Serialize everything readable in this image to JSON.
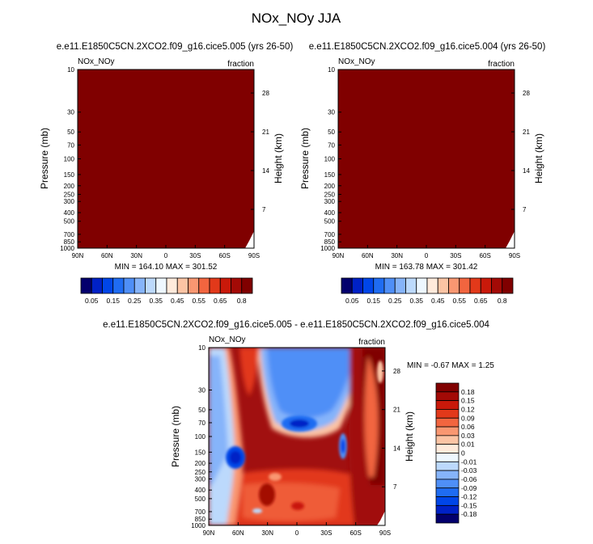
{
  "title": "NOx_NOy JJA",
  "colors": {
    "dark_red": "#800000",
    "diff_background": "#a11010"
  },
  "chart_data": [
    {
      "type": "heatmap",
      "panel": "top-left",
      "title": "e.e11.E1850C5CN.2XCO2.f09_g16.cice5.005 (yrs 26-50)",
      "left_label": "NOx_NOy",
      "right_label": "fraction",
      "ylabel": "Pressure (mb)",
      "y2label": "Height (km)",
      "x_ticks": [
        "90N",
        "60N",
        "30N",
        "0",
        "30S",
        "60S",
        "90S"
      ],
      "x_range": [
        90,
        -90
      ],
      "y_ticks": [
        "10",
        "30",
        "50",
        "70",
        "100",
        "150",
        "200",
        "250",
        "300",
        "400",
        "500",
        "700",
        "850",
        "1000"
      ],
      "y_range_mb": [
        10,
        1000
      ],
      "y2_ticks": [
        "28",
        "21",
        "14",
        "7"
      ],
      "stats": "MIN = 164.10   MAX = 301.52",
      "colorbar_labels": [
        "0.05",
        "0.15",
        "0.25",
        "0.35",
        "0.45",
        "0.55",
        "0.65",
        "0.8"
      ],
      "colorbar_colors": [
        "#03006d",
        "#0021c6",
        "#0046e8",
        "#1f6cf2",
        "#4f8ff7",
        "#86b4fa",
        "#bcd9fc",
        "#eef7ff",
        "#ffeadb",
        "#fcc4a4",
        "#f99771",
        "#f2653f",
        "#e2391a",
        "#c9190a",
        "#a30a06",
        "#800000"
      ],
      "field_value": "saturated above 0.8 everywhere"
    },
    {
      "type": "heatmap",
      "panel": "top-right",
      "title": "e.e11.E1850C5CN.2XCO2.f09_g16.cice5.004 (yrs 26-50)",
      "left_label": "NOx_NOy",
      "right_label": "fraction",
      "ylabel": "Pressure (mb)",
      "y2label": "Height (km)",
      "x_ticks": [
        "90N",
        "60N",
        "30N",
        "0",
        "30S",
        "60S",
        "90S"
      ],
      "x_range": [
        90,
        -90
      ],
      "y_ticks": [
        "10",
        "30",
        "50",
        "70",
        "100",
        "150",
        "200",
        "250",
        "300",
        "400",
        "500",
        "700",
        "850",
        "1000"
      ],
      "y_range_mb": [
        10,
        1000
      ],
      "y2_ticks": [
        "28",
        "21",
        "14",
        "7"
      ],
      "stats": "MIN = 163.78   MAX = 301.42",
      "colorbar_labels": [
        "0.05",
        "0.15",
        "0.25",
        "0.35",
        "0.45",
        "0.55",
        "0.65",
        "0.8"
      ],
      "colorbar_colors": [
        "#03006d",
        "#0021c6",
        "#0046e8",
        "#1f6cf2",
        "#4f8ff7",
        "#86b4fa",
        "#bcd9fc",
        "#eef7ff",
        "#ffeadb",
        "#fcc4a4",
        "#f99771",
        "#f2653f",
        "#e2391a",
        "#c9190a",
        "#a30a06",
        "#800000"
      ],
      "field_value": "saturated above 0.8 everywhere"
    },
    {
      "type": "heatmap",
      "panel": "bottom-difference",
      "title": "e.e11.E1850C5CN.2XCO2.f09_g16.cice5.005 - e.e11.E1850C5CN.2XCO2.f09_g16.cice5.004",
      "left_label": "NOx_NOy",
      "right_label": "fraction",
      "ylabel": "Pressure (mb)",
      "y2label": "Height (km)",
      "x_ticks": [
        "90N",
        "60N",
        "30N",
        "0",
        "30S",
        "60S",
        "90S"
      ],
      "x_range": [
        90,
        -90
      ],
      "y_ticks": [
        "10",
        "30",
        "50",
        "70",
        "100",
        "150",
        "200",
        "250",
        "300",
        "400",
        "500",
        "700",
        "850",
        "1000"
      ],
      "y_range_mb": [
        10,
        1000
      ],
      "y2_ticks": [
        "28",
        "21",
        "14",
        "7"
      ],
      "stats": "MIN =  -0.67   MAX =   1.25",
      "colorbar_labels": [
        "0.18",
        "0.15",
        "0.12",
        "0.09",
        "0.06",
        "0.03",
        "0.01",
        "0",
        "-0.01",
        "-0.03",
        "-0.06",
        "-0.09",
        "-0.12",
        "-0.15",
        "-0.18"
      ],
      "colorbar_colors": [
        "#800000",
        "#a30a06",
        "#c9190a",
        "#e2391a",
        "#f2653f",
        "#f99771",
        "#fcc4a4",
        "#ffeadb",
        "#eef7ff",
        "#bcd9fc",
        "#86b4fa",
        "#4f8ff7",
        "#1f6cf2",
        "#0046e8",
        "#0021c6",
        "#03006d"
      ]
    }
  ]
}
